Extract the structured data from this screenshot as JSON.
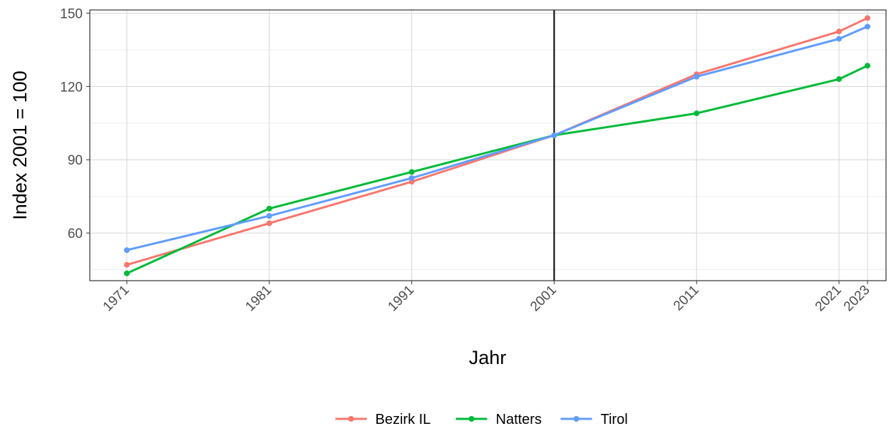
{
  "chart_data": {
    "type": "line",
    "title": "",
    "xlabel": "Jahr",
    "ylabel": "Index 2001 = 100",
    "x": [
      1971,
      1981,
      1991,
      2001,
      2011,
      2021,
      2023
    ],
    "x_tick_labels": [
      "1971",
      "1981",
      "1991",
      "2001",
      "2011",
      "2021",
      "2023"
    ],
    "xlim": [
      1968.4,
      2024.3
    ],
    "y_ticks": [
      60,
      90,
      120,
      150
    ],
    "y_tick_labels": [
      "60",
      "90",
      "120",
      "150"
    ],
    "ylim": [
      40.5,
      151.3
    ],
    "reference_line_x": 2001,
    "grid": true,
    "legend_position": "bottom",
    "series": [
      {
        "name": "Bezirk IL",
        "color": "#F8766D",
        "values": [
          47,
          64,
          81,
          100,
          125,
          142.5,
          148
        ]
      },
      {
        "name": "Natters",
        "color": "#00BA38",
        "values": [
          43.5,
          70,
          85,
          100,
          109,
          123,
          128.5
        ]
      },
      {
        "name": "Tirol",
        "color": "#619CFF",
        "values": [
          53,
          67,
          82.5,
          100,
          124,
          139.5,
          144.5
        ]
      }
    ]
  }
}
